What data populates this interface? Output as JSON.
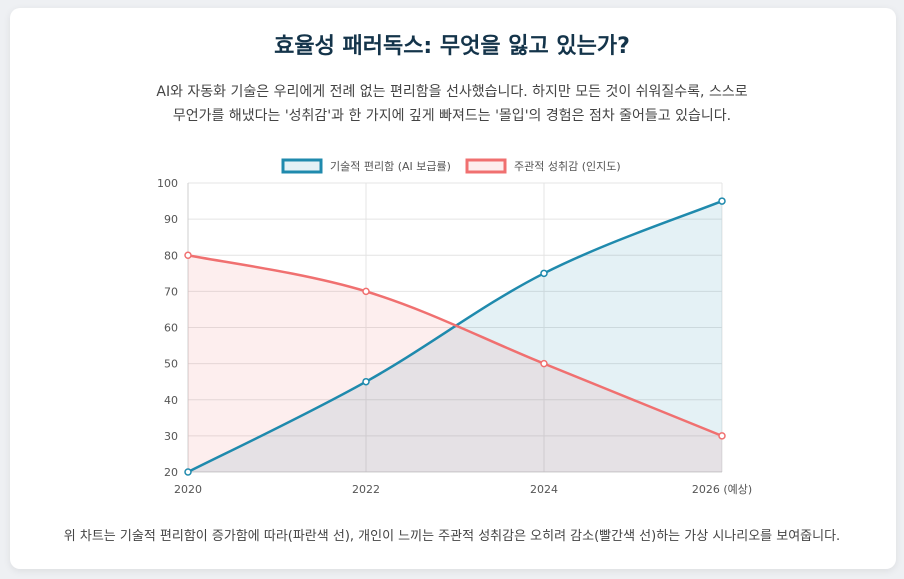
{
  "page": {
    "title": "효율성 패러독스: 무엇을 잃고 있는가?",
    "subtitle_line1": "AI와 자동화 기술은 우리에게 전례 없는 편리함을 선사했습니다. 하지만 모든 것이 쉬워질수록, 스스로",
    "subtitle_line2": "무언가를 해냈다는 '성취감'과 한 가지에 깊게 빠져드는 '몰입'의 경험은 점차 줄어들고 있습니다.",
    "footer": "위 차트는 기술적 편리함이 증가함에 따라(파란색 선), 개인이 느끼는 주관적 성취감은 오히려 감소(빨간색 선)하는 가상 시나리오를 보여줍니다."
  },
  "chart_data": {
    "type": "line",
    "x": [
      "2020",
      "2022",
      "2024",
      "2026 (예상)"
    ],
    "ylim": [
      20,
      100
    ],
    "yticks": [
      "20",
      "30",
      "40",
      "50",
      "60",
      "70",
      "80",
      "90",
      "100"
    ],
    "legend_position": "top-center",
    "series": [
      {
        "name": "기술적 편리함 (AI 보급률)",
        "values": [
          20,
          45,
          75,
          95
        ],
        "color": "#1f8aad",
        "fill": "rgba(31,138,173,0.12)"
      },
      {
        "name": "주관적 성취감 (인지도)",
        "values": [
          80,
          70,
          50,
          30
        ],
        "color": "#f07070",
        "fill": "rgba(240,112,112,0.12)"
      }
    ]
  }
}
